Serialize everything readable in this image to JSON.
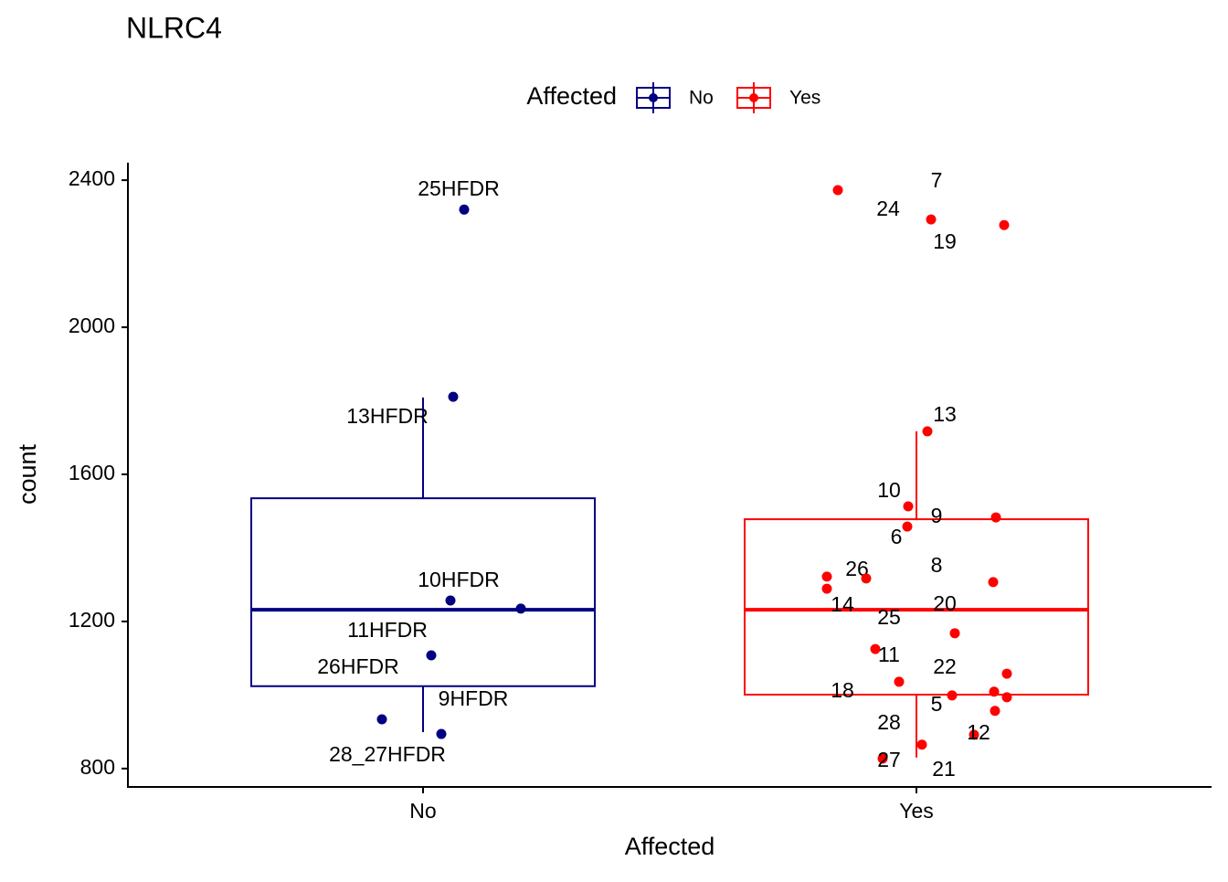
{
  "chart_data": {
    "type": "box",
    "title": "NLRC4",
    "x_label": "Affected",
    "y_label": "count",
    "legend_title": "Affected",
    "categories": [
      "No",
      "Yes"
    ],
    "ylim": [
      750,
      2450
    ],
    "yticks": [
      800,
      1200,
      1600,
      2000,
      2400
    ],
    "series": [
      {
        "name": "No",
        "color": "#000080",
        "box": {
          "whisker_low": 899,
          "q1": 1024,
          "median": 1232,
          "q3": 1535,
          "whisker_high": 1809
        },
        "values": [
          2320,
          1811,
          1257,
          1235,
          1108,
          934,
          894
        ],
        "labels": [
          "25HFDR",
          "13HFDR",
          "10HFDR",
          "11HFDR",
          "26HFDR",
          "28_27HFDR",
          "9HFDR"
        ]
      },
      {
        "name": "Yes",
        "color": "#ff0000",
        "box": {
          "whisker_low": 830,
          "q1": 1001,
          "median": 1232,
          "q3": 1478,
          "whisker_high": 1717
        },
        "values": [
          2373,
          2293,
          2278,
          1717,
          1513,
          1458,
          1483,
          1322,
          1317,
          1289,
          1307,
          1168,
          1125,
          1036,
          999,
          1058,
          1009,
          994,
          957,
          892,
          865,
          827
        ],
        "labels": [
          "24",
          "7",
          "19",
          "13",
          "10",
          "6",
          "9",
          "26",
          "20",
          "14",
          "8",
          "25",
          "11",
          "18",
          "5",
          "22",
          null,
          null,
          "28",
          "12",
          "21",
          "27"
        ]
      }
    ]
  }
}
